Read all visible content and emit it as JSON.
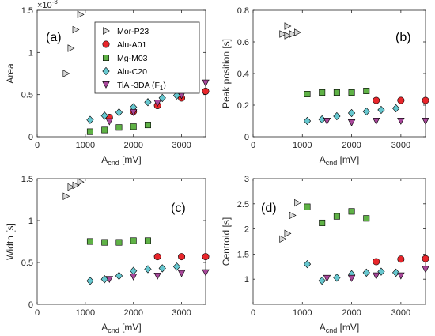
{
  "chart_data": [
    {
      "type": "scatter",
      "panel_label": "(a)",
      "ylabel": "Area",
      "y_multiplier": "×10",
      "y_multiplier_exp": "-3",
      "xlabel_main": "A",
      "xlabel_sub": "cnd",
      "xlabel_unit": " [mV]",
      "xlim": [
        0,
        3500
      ],
      "ylim": [
        0,
        1.5
      ],
      "xticks": [
        0,
        1000,
        2000,
        3000
      ],
      "yticks": [
        0,
        0.5,
        1,
        1.5
      ],
      "ytick_labels": [
        "0",
        "0.5",
        "1",
        "1.5"
      ],
      "legend": {
        "placement": "top-center"
      },
      "series": [
        {
          "name": "Mor-P23",
          "points": [
            [
              600,
              0.75
            ],
            [
              700,
              1.05
            ],
            [
              800,
              1.27
            ],
            [
              900,
              1.45
            ]
          ]
        },
        {
          "name": "Alu-A01",
          "points": [
            [
              1500,
              0.23
            ],
            [
              2000,
              0.3
            ],
            [
              2500,
              0.37
            ],
            [
              3000,
              0.46
            ],
            [
              3500,
              0.54
            ]
          ]
        },
        {
          "name": "Mg-M03",
          "points": [
            [
              1100,
              0.06
            ],
            [
              1400,
              0.08
            ],
            [
              1700,
              0.11
            ],
            [
              2000,
              0.12
            ],
            [
              2300,
              0.14
            ]
          ]
        },
        {
          "name": "Alu-C20",
          "points": [
            [
              1100,
              0.2
            ],
            [
              1400,
              0.25
            ],
            [
              1700,
              0.29
            ],
            [
              2000,
              0.35
            ],
            [
              2300,
              0.41
            ],
            [
              2600,
              0.46
            ],
            [
              2900,
              0.49
            ]
          ]
        },
        {
          "name": "TiAl-3DA (F",
          "name_sub": "1",
          "name_end": ")",
          "points": [
            [
              1500,
              0.18
            ],
            [
              2000,
              0.29
            ],
            [
              2500,
              0.4
            ],
            [
              3000,
              0.49
            ],
            [
              3500,
              0.64
            ]
          ]
        }
      ]
    },
    {
      "type": "scatter",
      "panel_label": "(b)",
      "ylabel": "Peak position [s]",
      "xlabel_main": "A",
      "xlabel_sub": "cnd",
      "xlabel_unit": " [mV]",
      "xlim": [
        0,
        3500
      ],
      "ylim": [
        0,
        0.8
      ],
      "xticks": [
        0,
        1000,
        2000,
        3000
      ],
      "yticks": [
        0,
        0.2,
        0.4,
        0.6,
        0.8
      ],
      "ytick_labels": [
        "0",
        "0.2",
        "0.4",
        "0.6",
        "0.8"
      ],
      "series": [
        {
          "name": "Mor-P23",
          "points": [
            [
              600,
              0.65
            ],
            [
              700,
              0.7
            ],
            [
              700,
              0.64
            ],
            [
              800,
              0.65
            ],
            [
              900,
              0.66
            ]
          ]
        },
        {
          "name": "Alu-A01",
          "points": [
            [
              2500,
              0.23
            ],
            [
              3000,
              0.23
            ],
            [
              3500,
              0.23
            ]
          ]
        },
        {
          "name": "Mg-M03",
          "points": [
            [
              1100,
              0.27
            ],
            [
              1400,
              0.28
            ],
            [
              1700,
              0.28
            ],
            [
              2000,
              0.28
            ],
            [
              2300,
              0.29
            ]
          ]
        },
        {
          "name": "Alu-C20",
          "points": [
            [
              1100,
              0.1
            ],
            [
              1400,
              0.11
            ],
            [
              1700,
              0.13
            ],
            [
              2000,
              0.15
            ],
            [
              2300,
              0.16
            ],
            [
              2600,
              0.17
            ],
            [
              2900,
              0.18
            ]
          ]
        },
        {
          "name": "TiAl-3DA (F",
          "name_sub": "1",
          "name_end": ")",
          "points": [
            [
              1500,
              0.1
            ],
            [
              2000,
              0.09
            ],
            [
              2500,
              0.1
            ],
            [
              3000,
              0.1
            ],
            [
              3500,
              0.1
            ]
          ]
        }
      ]
    },
    {
      "type": "scatter",
      "panel_label": "(c)",
      "ylabel": "Width [s]",
      "xlabel_main": "A",
      "xlabel_sub": "cnd",
      "xlabel_unit": " [mV]",
      "xlim": [
        0,
        3500
      ],
      "ylim": [
        0,
        1.5
      ],
      "xticks": [
        0,
        1000,
        2000,
        3000
      ],
      "yticks": [
        0,
        0.5,
        1,
        1.5
      ],
      "ytick_labels": [
        "0",
        "0.5",
        "1",
        "1.5"
      ],
      "series": [
        {
          "name": "Mor-P23",
          "points": [
            [
              600,
              1.29
            ],
            [
              700,
              1.4
            ],
            [
              800,
              1.42
            ],
            [
              900,
              1.46
            ]
          ]
        },
        {
          "name": "Alu-A01",
          "points": [
            [
              2500,
              0.57
            ],
            [
              3000,
              0.57
            ],
            [
              3500,
              0.57
            ]
          ]
        },
        {
          "name": "Mg-M03",
          "points": [
            [
              1100,
              0.75
            ],
            [
              1400,
              0.74
            ],
            [
              1700,
              0.74
            ],
            [
              2000,
              0.76
            ],
            [
              2300,
              0.76
            ]
          ]
        },
        {
          "name": "Alu-C20",
          "points": [
            [
              1100,
              0.28
            ],
            [
              1400,
              0.3
            ],
            [
              1700,
              0.34
            ],
            [
              2000,
              0.4
            ],
            [
              2300,
              0.42
            ],
            [
              2600,
              0.43
            ],
            [
              2900,
              0.45
            ]
          ]
        },
        {
          "name": "TiAl-3DA (F",
          "name_sub": "1",
          "name_end": ")",
          "points": [
            [
              1500,
              0.3
            ],
            [
              2000,
              0.33
            ],
            [
              2500,
              0.34
            ],
            [
              3000,
              0.37
            ],
            [
              3500,
              0.38
            ]
          ]
        }
      ]
    },
    {
      "type": "scatter",
      "panel_label": "(d)",
      "ylabel": "Centroid [s]",
      "xlabel_main": "A",
      "xlabel_sub": "cnd",
      "xlabel_unit": " [mV]",
      "xlim": [
        0,
        3500
      ],
      "ylim": [
        0.5,
        3
      ],
      "xticks": [
        0,
        1000,
        2000,
        3000
      ],
      "yticks": [
        1,
        1.5,
        2,
        2.5,
        3
      ],
      "ytick_labels": [
        "1",
        "1.5",
        "2",
        "2.5",
        "3"
      ],
      "series": [
        {
          "name": "Mor-P23",
          "points": [
            [
              600,
              1.8
            ],
            [
              700,
              1.91
            ],
            [
              800,
              2.27
            ],
            [
              900,
              2.52
            ]
          ]
        },
        {
          "name": "Alu-A01",
          "points": [
            [
              2500,
              1.35
            ],
            [
              3000,
              1.4
            ],
            [
              3500,
              1.41
            ]
          ]
        },
        {
          "name": "Mg-M03",
          "points": [
            [
              1100,
              2.44
            ],
            [
              1400,
              2.12
            ],
            [
              1700,
              2.25
            ],
            [
              2000,
              2.35
            ],
            [
              2300,
              2.21
            ]
          ]
        },
        {
          "name": "Alu-C20",
          "points": [
            [
              1100,
              1.3
            ],
            [
              1400,
              0.97
            ],
            [
              1700,
              1.03
            ],
            [
              2000,
              1.1
            ],
            [
              2300,
              1.13
            ],
            [
              2600,
              1.15
            ],
            [
              2900,
              1.13
            ]
          ]
        },
        {
          "name": "TiAl-3DA (F",
          "name_sub": "1",
          "name_end": ")",
          "points": [
            [
              1500,
              1.02
            ],
            [
              2000,
              1.02
            ],
            [
              2500,
              1.07
            ],
            [
              3000,
              1.07
            ],
            [
              3500,
              1.2
            ]
          ]
        }
      ]
    }
  ],
  "styles": {
    "Mor-P23": {
      "marker": "triangle-right",
      "color": "#d9d9d9"
    },
    "Alu-A01": {
      "marker": "circle",
      "color": "#e8262b"
    },
    "Mg-M03": {
      "marker": "square",
      "color": "#5fb246"
    },
    "Alu-C20": {
      "marker": "diamond",
      "color": "#66c7cf"
    },
    "TiAl-3DA (F": {
      "marker": "triangle-down",
      "color": "#a8479a"
    }
  }
}
